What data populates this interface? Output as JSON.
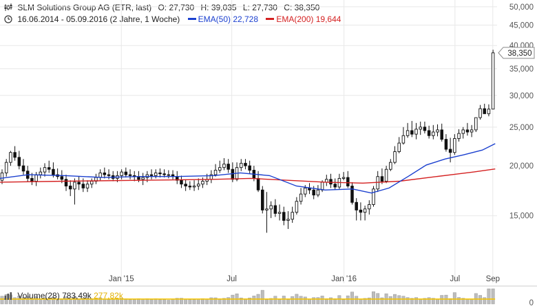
{
  "header": {
    "title": "SLM Solutions Group AG (ETR, last)",
    "open": "O: 27,730",
    "high": "H: 39,035",
    "low": "L: 27,730",
    "close": "C: 38,350",
    "range": "16.06.2014 - 05.09.2016 (2 Jahre, 1 Woche)",
    "ema50_label": "EMA(50)",
    "ema50_value": "22,728",
    "ema200_label": "EMA(200)",
    "ema200_value": "19,644"
  },
  "last_price_badge": "38,350",
  "volume": {
    "label": "Volume(28)",
    "value": "783,49k",
    "average": "277,82k",
    "axis_label": "0"
  },
  "colors": {
    "ema50": "#1a3fcf",
    "ema200": "#d42020",
    "candle": "#111111",
    "volume_bar": "#bdbdbd",
    "volume_avg": "#f5c400",
    "grid": "#e8e8e8"
  },
  "chart_data": {
    "type": "candlestick",
    "scale": "log",
    "ylim": [
      11000,
      52000
    ],
    "y_ticks": [
      "15,000",
      "20,000",
      "25,000",
      "30,000",
      "35,000",
      "40,000",
      "45,000",
      "50,000"
    ],
    "y_tick_values": [
      15000,
      20000,
      25000,
      30000,
      35000,
      40000,
      45000,
      50000
    ],
    "x_ticks": [
      "Jan '15",
      "Jul",
      "Jan '16",
      "Jul",
      "Sep"
    ],
    "x_tick_dates": [
      "2015-01-01",
      "2015-07-01",
      "2016-01-01",
      "2016-07-01",
      "2016-09-01"
    ],
    "x_range": [
      "2014-06-16",
      "2016-09-05"
    ],
    "series": [
      {
        "name": "SLM Solutions Group AG",
        "kind": "ohlc_weekly",
        "dates": [
          "2014-06-16",
          "2014-06-23",
          "2014-06-30",
          "2014-07-07",
          "2014-07-14",
          "2014-07-21",
          "2014-07-28",
          "2014-08-04",
          "2014-08-11",
          "2014-08-18",
          "2014-08-25",
          "2014-09-01",
          "2014-09-08",
          "2014-09-15",
          "2014-09-22",
          "2014-09-29",
          "2014-10-06",
          "2014-10-13",
          "2014-10-20",
          "2014-10-27",
          "2014-11-03",
          "2014-11-10",
          "2014-11-17",
          "2014-11-24",
          "2014-12-01",
          "2014-12-08",
          "2014-12-15",
          "2014-12-22",
          "2014-12-29",
          "2015-01-05",
          "2015-01-12",
          "2015-01-19",
          "2015-01-26",
          "2015-02-02",
          "2015-02-09",
          "2015-02-16",
          "2015-02-23",
          "2015-03-02",
          "2015-03-09",
          "2015-03-16",
          "2015-03-23",
          "2015-03-30",
          "2015-04-06",
          "2015-04-13",
          "2015-04-20",
          "2015-04-27",
          "2015-05-04",
          "2015-05-11",
          "2015-05-18",
          "2015-05-25",
          "2015-06-01",
          "2015-06-08",
          "2015-06-15",
          "2015-06-22",
          "2015-06-29",
          "2015-07-06",
          "2015-07-13",
          "2015-07-20",
          "2015-07-27",
          "2015-08-03",
          "2015-08-10",
          "2015-08-17",
          "2015-08-24",
          "2015-08-31",
          "2015-09-07",
          "2015-09-14",
          "2015-09-21",
          "2015-09-28",
          "2015-10-05",
          "2015-10-12",
          "2015-10-19",
          "2015-10-26",
          "2015-11-02",
          "2015-11-09",
          "2015-11-16",
          "2015-11-23",
          "2015-11-30",
          "2015-12-07",
          "2015-12-14",
          "2015-12-21",
          "2015-12-28",
          "2016-01-04",
          "2016-01-11",
          "2016-01-18",
          "2016-01-25",
          "2016-02-01",
          "2016-02-08",
          "2016-02-15",
          "2016-02-22",
          "2016-02-29",
          "2016-03-07",
          "2016-03-14",
          "2016-03-21",
          "2016-03-28",
          "2016-04-04",
          "2016-04-11",
          "2016-04-18",
          "2016-04-25",
          "2016-05-02",
          "2016-05-09",
          "2016-05-16",
          "2016-05-23",
          "2016-05-30",
          "2016-06-06",
          "2016-06-13",
          "2016-06-20",
          "2016-06-27",
          "2016-07-04",
          "2016-07-11",
          "2016-07-18",
          "2016-07-25",
          "2016-08-01",
          "2016-08-08",
          "2016-08-15",
          "2016-08-22",
          "2016-08-29"
        ],
        "open": [
          18.4,
          19.2,
          20.4,
          21.6,
          21.0,
          20.0,
          19.4,
          18.6,
          18.3,
          19.0,
          19.3,
          19.8,
          19.6,
          19.0,
          18.8,
          18.5,
          17.8,
          17.5,
          18.2,
          18.0,
          17.6,
          18.0,
          18.3,
          18.7,
          19.2,
          19.0,
          18.9,
          18.6,
          18.9,
          19.3,
          19.0,
          18.9,
          18.8,
          18.5,
          18.7,
          19.0,
          18.9,
          19.2,
          19.1,
          19.0,
          19.0,
          18.8,
          18.4,
          18.0,
          17.8,
          17.7,
          17.8,
          18.0,
          18.3,
          18.5,
          19.0,
          19.5,
          19.8,
          20.2,
          19.6,
          18.5,
          19.8,
          20.3,
          20.0,
          19.5,
          18.6,
          17.4,
          15.5,
          15.6,
          15.9,
          15.2,
          15.3,
          14.6,
          14.7,
          15.3,
          16.3,
          17.0,
          17.6,
          17.4,
          16.9,
          17.4,
          18.2,
          18.5,
          18.0,
          17.7,
          18.6,
          18.7,
          17.8,
          16.2,
          15.5,
          15.3,
          15.6,
          16.0,
          17.5,
          18.8,
          18.3,
          19.6,
          20.4,
          21.7,
          22.8,
          23.8,
          24.5,
          24.0,
          24.7,
          25.0,
          24.5,
          23.8,
          24.3,
          24.6,
          23.3,
          22.0,
          21.6,
          23.4,
          24.1,
          24.6,
          24.3,
          24.6,
          26.4,
          27.8,
          27.0,
          27.73
        ],
        "high": [
          19.6,
          20.8,
          21.8,
          22.4,
          21.8,
          20.8,
          20.0,
          19.2,
          19.3,
          19.8,
          20.3,
          20.6,
          20.4,
          19.7,
          19.5,
          19.0,
          18.4,
          18.6,
          18.8,
          18.6,
          18.4,
          18.6,
          19.1,
          19.6,
          19.8,
          19.6,
          19.4,
          19.4,
          19.6,
          19.8,
          19.6,
          19.4,
          19.4,
          19.2,
          19.4,
          19.6,
          19.6,
          19.7,
          19.6,
          19.5,
          19.5,
          19.4,
          18.9,
          18.5,
          18.3,
          18.4,
          18.6,
          18.7,
          19.1,
          19.5,
          20.2,
          20.6,
          20.9,
          20.8,
          20.4,
          20.4,
          20.8,
          20.8,
          20.6,
          20.0,
          19.4,
          17.8,
          17.2,
          16.3,
          16.5,
          16.0,
          15.8,
          15.4,
          15.8,
          16.7,
          17.6,
          17.9,
          18.1,
          17.8,
          17.9,
          18.4,
          19.0,
          19.1,
          18.6,
          19.1,
          19.3,
          19.4,
          18.2,
          16.6,
          16.2,
          15.9,
          16.4,
          17.8,
          19.4,
          19.7,
          20.0,
          20.8,
          22.4,
          23.6,
          25.0,
          25.6,
          25.9,
          25.6,
          25.8,
          25.8,
          25.2,
          25.3,
          25.4,
          25.5,
          24.0,
          23.5,
          24.0,
          24.7,
          25.0,
          25.6,
          25.3,
          26.4,
          28.4,
          28.6,
          28.5,
          39.035
        ],
        "low": [
          18.0,
          18.8,
          20.0,
          20.6,
          19.6,
          19.0,
          18.2,
          17.9,
          17.8,
          18.6,
          18.8,
          19.2,
          18.7,
          18.5,
          18.1,
          17.3,
          16.8,
          16.0,
          17.4,
          17.2,
          17.2,
          17.6,
          18.0,
          18.4,
          18.6,
          18.5,
          18.3,
          18.2,
          18.5,
          18.7,
          18.5,
          18.3,
          18.2,
          17.9,
          18.2,
          18.5,
          18.6,
          18.7,
          18.7,
          18.6,
          18.5,
          18.0,
          17.6,
          17.3,
          17.4,
          17.3,
          17.4,
          17.6,
          17.9,
          18.1,
          18.8,
          19.2,
          19.5,
          19.2,
          18.2,
          18.3,
          19.4,
          19.6,
          19.1,
          18.3,
          17.2,
          15.2,
          13.6,
          14.8,
          14.9,
          14.6,
          14.2,
          13.9,
          14.4,
          15.1,
          16.0,
          16.7,
          17.0,
          16.5,
          16.7,
          17.2,
          17.8,
          17.6,
          17.4,
          17.5,
          18.4,
          17.6,
          16.0,
          14.6,
          14.6,
          14.6,
          15.1,
          15.8,
          17.2,
          18.0,
          18.1,
          19.4,
          20.2,
          21.5,
          22.6,
          23.5,
          23.6,
          23.3,
          23.9,
          24.1,
          23.4,
          23.3,
          23.7,
          23.0,
          21.7,
          20.4,
          21.3,
          23.0,
          23.4,
          23.8,
          23.6,
          24.3,
          26.1,
          27.0,
          26.6,
          27.73
        ],
        "close": [
          19.2,
          20.4,
          21.6,
          21.0,
          20.0,
          19.4,
          18.6,
          18.3,
          19.0,
          19.3,
          19.8,
          19.6,
          19.0,
          18.8,
          18.5,
          17.8,
          17.5,
          18.2,
          18.0,
          17.6,
          18.0,
          18.3,
          18.7,
          19.2,
          19.0,
          18.9,
          18.6,
          18.9,
          19.3,
          19.0,
          18.9,
          18.8,
          18.5,
          18.7,
          19.0,
          18.9,
          19.2,
          19.1,
          19.0,
          19.0,
          18.8,
          18.4,
          18.0,
          17.8,
          17.7,
          17.8,
          18.0,
          18.3,
          18.5,
          19.0,
          19.5,
          19.8,
          20.2,
          19.6,
          18.5,
          19.8,
          20.3,
          20.0,
          19.5,
          18.6,
          17.4,
          15.5,
          15.6,
          15.9,
          15.2,
          15.3,
          14.6,
          14.7,
          15.3,
          16.3,
          17.0,
          17.6,
          17.4,
          16.9,
          17.4,
          18.2,
          18.5,
          18.0,
          17.7,
          18.6,
          18.7,
          17.8,
          16.2,
          15.5,
          15.3,
          15.6,
          16.0,
          17.5,
          18.8,
          18.3,
          19.6,
          20.4,
          21.7,
          22.8,
          23.8,
          24.5,
          24.0,
          24.7,
          25.0,
          24.5,
          23.8,
          24.3,
          24.6,
          23.3,
          22.0,
          21.6,
          23.4,
          24.1,
          24.6,
          24.3,
          24.6,
          26.4,
          27.8,
          27.0,
          27.73,
          38.35
        ]
      },
      {
        "name": "EMA(50)",
        "kind": "line",
        "x": [
          "2014-06-16",
          "2014-08-01",
          "2014-10-01",
          "2014-12-01",
          "2015-02-01",
          "2015-04-01",
          "2015-06-01",
          "2015-07-15",
          "2015-09-01",
          "2015-10-15",
          "2015-12-01",
          "2016-01-15",
          "2016-02-15",
          "2016-03-15",
          "2016-04-15",
          "2016-05-15",
          "2016-06-15",
          "2016-07-15",
          "2016-08-15",
          "2016-09-05"
        ],
        "values": [
          18.6,
          19.0,
          18.9,
          18.7,
          18.8,
          18.8,
          18.9,
          19.2,
          18.9,
          17.8,
          17.4,
          17.5,
          17.1,
          17.6,
          18.8,
          20.1,
          20.8,
          21.3,
          21.9,
          22.728
        ]
      },
      {
        "name": "EMA(200)",
        "kind": "line",
        "x": [
          "2014-06-16",
          "2014-10-01",
          "2015-02-01",
          "2015-06-01",
          "2015-08-01",
          "2015-10-01",
          "2015-12-01",
          "2016-02-01",
          "2016-04-01",
          "2016-06-01",
          "2016-08-01",
          "2016-09-05"
        ],
        "values": [
          18.2,
          18.3,
          18.4,
          18.5,
          18.6,
          18.4,
          18.2,
          18.1,
          18.3,
          18.8,
          19.3,
          19.644
        ]
      }
    ]
  }
}
